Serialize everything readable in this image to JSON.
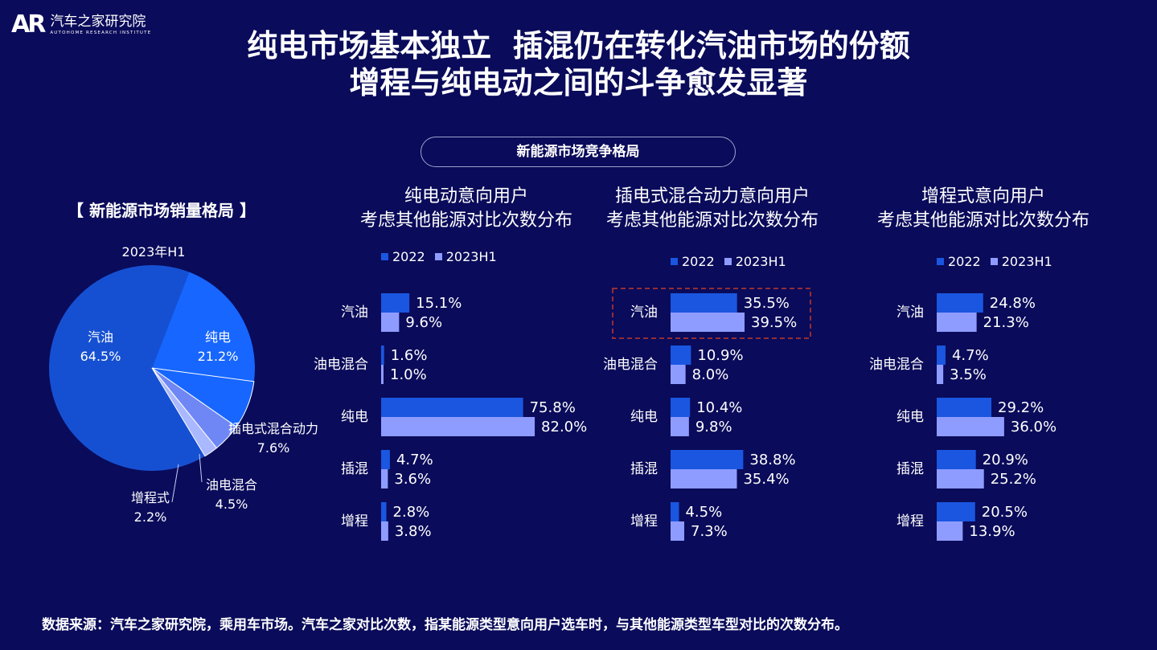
{
  "header": {
    "logo_mark": "AR",
    "logo_cn": "汽车之家研究院",
    "logo_en": "AUTOHOME RESEARCH INSTITUTE",
    "title_line1": "纯电市场基本独立  插混仍在转化汽油市场的份额",
    "title_line2": "增程与纯电动之间的斗争愈发显著"
  },
  "section_label": "新能源市场竞争格局",
  "colors": {
    "background": "#0a0b5a",
    "bar_2022": "#1a56e0",
    "bar_2023h1": "#8f9cff",
    "highlight_box": "#c0392b"
  },
  "footer": "数据来源：汽车之家研究院，乘用车市场。汽车之家对比次数，指某能源类型意向用户选车时，与其他能源类型车型对比的次数分布。",
  "chart_data": [
    {
      "type": "pie",
      "title": "【 新能源市场销量格局 】",
      "subtitle": "2023年H1",
      "categories": [
        "汽油",
        "纯电",
        "插电式混合动力",
        "油电混合",
        "增程式"
      ],
      "values": [
        64.5,
        21.2,
        7.6,
        4.5,
        2.2
      ],
      "value_labels": [
        "64.5%",
        "21.2%",
        "7.6%",
        "4.5%",
        "2.2%"
      ],
      "colors": [
        "#1650d2",
        "#1766ff",
        "#1766ff",
        "#6f87f5",
        "#aab8ff"
      ]
    },
    {
      "type": "bar",
      "orientation": "horizontal",
      "title_line1": "纯电动意向用户",
      "title_line2": "考虑其他能源对比次数分布",
      "categories": [
        "汽油",
        "油电混合",
        "纯电",
        "插混",
        "增程"
      ],
      "series": [
        {
          "name": "2022",
          "values": [
            15.1,
            1.6,
            75.8,
            4.7,
            2.8
          ],
          "labels": [
            "15.1%",
            "1.6%",
            "75.8%",
            "4.7%",
            "2.8%"
          ]
        },
        {
          "name": "2023H1",
          "values": [
            9.6,
            1.0,
            82.0,
            3.6,
            3.8
          ],
          "labels": [
            "9.6%",
            "1.0%",
            "82.0%",
            "3.6%",
            "3.8%"
          ]
        }
      ],
      "xlim": [
        0,
        100
      ],
      "highlight": null
    },
    {
      "type": "bar",
      "orientation": "horizontal",
      "title_line1": "插电式混合动力意向用户",
      "title_line2": "考虑其他能源对比次数分布",
      "categories": [
        "汽油",
        "油电混合",
        "纯电",
        "插混",
        "增程"
      ],
      "series": [
        {
          "name": "2022",
          "values": [
            35.5,
            10.9,
            10.4,
            38.8,
            4.5
          ],
          "labels": [
            "35.5%",
            "10.9%",
            "10.4%",
            "38.8%",
            "4.5%"
          ]
        },
        {
          "name": "2023H1",
          "values": [
            39.5,
            8.0,
            9.8,
            35.4,
            7.3
          ],
          "labels": [
            "39.5%",
            "8.0%",
            "9.8%",
            "35.4%",
            "7.3%"
          ]
        }
      ],
      "xlim": [
        0,
        100
      ],
      "highlight": "汽油"
    },
    {
      "type": "bar",
      "orientation": "horizontal",
      "title_line1": "增程式意向用户",
      "title_line2": "考虑其他能源对比次数分布",
      "categories": [
        "汽油",
        "油电混合",
        "纯电",
        "插混",
        "增程"
      ],
      "series": [
        {
          "name": "2022",
          "values": [
            24.8,
            4.7,
            29.2,
            20.9,
            20.5
          ],
          "labels": [
            "24.8%",
            "4.7%",
            "29.2%",
            "20.9%",
            "20.5%"
          ]
        },
        {
          "name": "2023H1",
          "values": [
            21.3,
            3.5,
            36.0,
            25.2,
            13.9
          ],
          "labels": [
            "21.3%",
            "3.5%",
            "36.0%",
            "25.2%",
            "13.9%"
          ]
        }
      ],
      "xlim": [
        0,
        100
      ],
      "highlight": null
    }
  ]
}
